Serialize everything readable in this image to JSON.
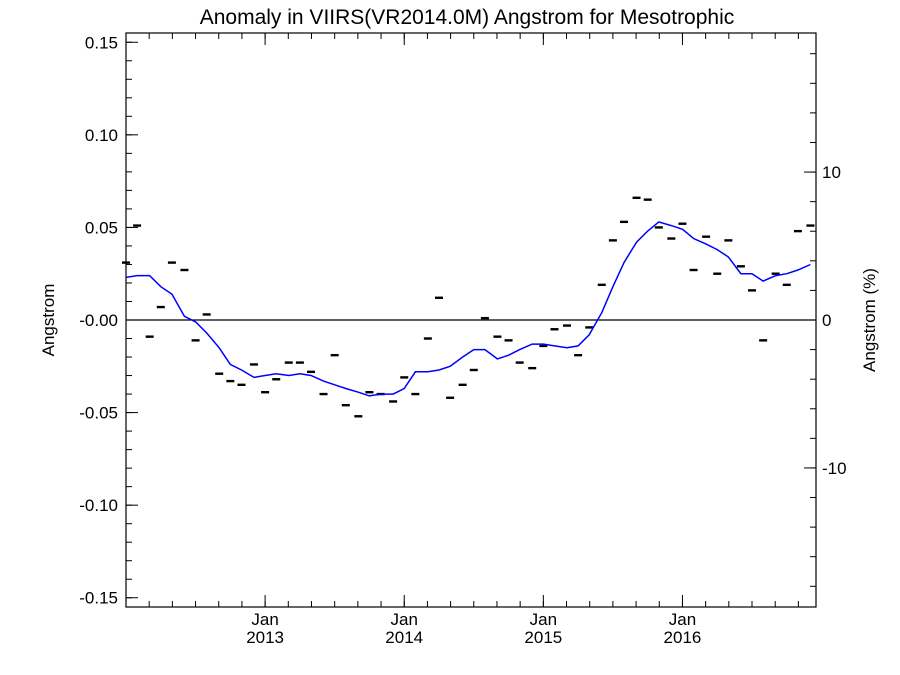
{
  "chart_data": {
    "type": "line",
    "title": "Anomaly in VIIRS(VR2014.0M) Angstrom for Mesotrophic",
    "ylabel": "Angstrom",
    "ylabel_right": "Angstrom (%)",
    "ylim": [
      -0.155,
      0.155
    ],
    "yticks": [
      "0.15",
      "0.10",
      "0.05",
      "-0.00",
      "-0.05",
      "-0.10",
      "-0.15"
    ],
    "ylim_right": [
      -19.4,
      19.4
    ],
    "yticks_right": [
      "10",
      "0",
      "-10"
    ],
    "xlim": [
      2012.0,
      2016.96
    ],
    "xticks": [
      {
        "month": "Jan",
        "year": "2013"
      },
      {
        "month": "Jan",
        "year": "2014"
      },
      {
        "month": "Jan",
        "year": "2015"
      },
      {
        "month": "Jan",
        "year": "2016"
      }
    ],
    "grid": false,
    "reference_line_y": 0,
    "line_color": "#0000ff",
    "series": [
      {
        "style": "marker",
        "x": [
          2012.0,
          2012.08,
          2012.17,
          2012.25,
          2012.33,
          2012.42,
          2012.5,
          2012.58,
          2012.67,
          2012.75,
          2012.83,
          2012.92,
          2013.0,
          2013.08,
          2013.17,
          2013.25,
          2013.33,
          2013.42,
          2013.5,
          2013.58,
          2013.67,
          2013.75,
          2013.83,
          2013.92,
          2014.0,
          2014.08,
          2014.17,
          2014.25,
          2014.33,
          2014.42,
          2014.5,
          2014.58,
          2014.67,
          2014.75,
          2014.83,
          2014.92,
          2015.0,
          2015.08,
          2015.17,
          2015.25,
          2015.33,
          2015.42,
          2015.5,
          2015.58,
          2015.67,
          2015.75,
          2015.83,
          2015.92,
          2016.0,
          2016.08,
          2016.17,
          2016.25,
          2016.33,
          2016.42,
          2016.5,
          2016.58,
          2016.67,
          2016.75,
          2016.83,
          2016.92
        ],
        "y": [
          0.031,
          0.051,
          -0.009,
          0.007,
          0.031,
          0.027,
          -0.011,
          0.003,
          -0.029,
          -0.033,
          -0.035,
          -0.024,
          -0.039,
          -0.032,
          -0.023,
          -0.023,
          -0.028,
          -0.04,
          -0.019,
          -0.046,
          -0.052,
          -0.039,
          -0.04,
          -0.044,
          -0.031,
          -0.04,
          -0.01,
          0.012,
          -0.042,
          -0.035,
          -0.027,
          0.001,
          -0.009,
          -0.011,
          -0.023,
          -0.026,
          -0.014,
          -0.005,
          -0.003,
          -0.019,
          -0.004,
          0.019,
          0.043,
          0.053,
          0.066,
          0.065,
          0.05,
          0.044,
          0.052,
          0.027,
          0.045,
          0.025,
          0.043,
          0.029,
          0.016,
          -0.011,
          0.025,
          0.019,
          0.048,
          0.051
        ]
      },
      {
        "style": "line",
        "x": [
          2012.0,
          2012.08,
          2012.17,
          2012.25,
          2012.33,
          2012.42,
          2012.5,
          2012.58,
          2012.67,
          2012.75,
          2012.83,
          2012.92,
          2013.0,
          2013.08,
          2013.17,
          2013.25,
          2013.33,
          2013.42,
          2013.5,
          2013.58,
          2013.67,
          2013.75,
          2013.83,
          2013.92,
          2014.0,
          2014.08,
          2014.17,
          2014.25,
          2014.33,
          2014.42,
          2014.5,
          2014.58,
          2014.67,
          2014.75,
          2014.83,
          2014.92,
          2015.0,
          2015.08,
          2015.17,
          2015.25,
          2015.33,
          2015.42,
          2015.5,
          2015.58,
          2015.67,
          2015.75,
          2015.83,
          2015.92,
          2016.0,
          2016.08,
          2016.17,
          2016.25,
          2016.33,
          2016.42,
          2016.5,
          2016.58,
          2016.67,
          2016.75,
          2016.83,
          2016.92
        ],
        "y": [
          0.023,
          0.024,
          0.024,
          0.018,
          0.014,
          0.002,
          -0.001,
          -0.007,
          -0.015,
          -0.024,
          -0.027,
          -0.031,
          -0.03,
          -0.029,
          -0.03,
          -0.029,
          -0.03,
          -0.033,
          -0.035,
          -0.037,
          -0.039,
          -0.041,
          -0.04,
          -0.04,
          -0.037,
          -0.028,
          -0.028,
          -0.027,
          -0.025,
          -0.02,
          -0.016,
          -0.016,
          -0.021,
          -0.019,
          -0.016,
          -0.013,
          -0.013,
          -0.014,
          -0.015,
          -0.014,
          -0.008,
          0.004,
          0.018,
          0.031,
          0.042,
          0.048,
          0.053,
          0.051,
          0.049,
          0.044,
          0.041,
          0.038,
          0.034,
          0.025,
          0.025,
          0.021,
          0.024,
          0.025,
          0.027,
          0.03
        ]
      }
    ]
  }
}
